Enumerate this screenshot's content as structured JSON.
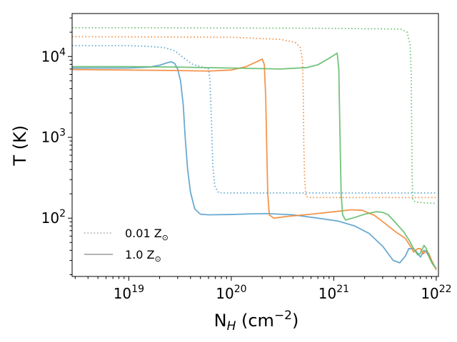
{
  "chart_data": {
    "type": "line",
    "xscale": "log",
    "yscale": "log",
    "xlim": [
      2.8e+18,
      1.05e+22
    ],
    "ylim": [
      19,
      34000
    ],
    "xlabel": {
      "main": "N",
      "sub": "H",
      "unit_open": " (cm",
      "unit_sup": "−2",
      "unit_close": ")"
    },
    "ylabel": "T (K)",
    "xticks": [
      {
        "value": 1e+19,
        "base": "10",
        "exp": "19"
      },
      {
        "value": 1e+20,
        "base": "10",
        "exp": "20"
      },
      {
        "value": 1e+21,
        "base": "10",
        "exp": "21"
      },
      {
        "value": 1e+22,
        "base": "10",
        "exp": "22"
      }
    ],
    "yticks": [
      {
        "value": 100,
        "base": "10",
        "exp": "2"
      },
      {
        "value": 1000,
        "base": "10",
        "exp": "3"
      },
      {
        "value": 10000,
        "base": "10",
        "exp": "4"
      }
    ],
    "legend": {
      "position": "lower-left",
      "entries": [
        {
          "label": "0.01 Z",
          "sub": "⊙",
          "style": "dotted",
          "color": "#aaaaaa"
        },
        {
          "label": "1.0 Z",
          "sub": "⊙",
          "style": "solid",
          "color": "#aaaaaa"
        }
      ]
    },
    "series": [
      {
        "name": "blue 0.01 Zsun",
        "color": "#5aa1cc",
        "style": "dotted",
        "points": [
          [
            2.8e+18,
            13600
          ],
          [
            1e+19,
            13600
          ],
          [
            1.6e+19,
            13300
          ],
          [
            2.2e+19,
            12900
          ],
          [
            2.8e+19,
            11800
          ],
          [
            3.4e+19,
            9700
          ],
          [
            4.2e+19,
            8000
          ],
          [
            5.2e+19,
            7400
          ],
          [
            6e+19,
            7000
          ],
          [
            6.2e+19,
            5000
          ],
          [
            6.4e+19,
            1600
          ],
          [
            6.6e+19,
            450
          ],
          [
            6.9e+19,
            250
          ],
          [
            7.5e+19,
            206
          ],
          [
            1e+20,
            205
          ],
          [
            1e+21,
            205
          ],
          [
            1e+22,
            205
          ]
        ]
      },
      {
        "name": "orange 0.01 Zsun",
        "color": "#f38a3a",
        "style": "dotted",
        "points": [
          [
            2.8e+18,
            17600
          ],
          [
            1e+19,
            17500
          ],
          [
            1e+20,
            17300
          ],
          [
            3e+20,
            16300
          ],
          [
            4.2e+20,
            15000
          ],
          [
            4.7e+20,
            13000
          ],
          [
            4.95e+20,
            9000
          ],
          [
            5.05e+20,
            3000
          ],
          [
            5.1e+20,
            800
          ],
          [
            5.2e+20,
            300
          ],
          [
            5.35e+20,
            185
          ],
          [
            5.8e+20,
            180
          ],
          [
            1e+21,
            180
          ],
          [
            1e+22,
            180
          ]
        ]
      },
      {
        "name": "green 0.01 Zsun",
        "color": "#63bd6c",
        "style": "dotted",
        "points": [
          [
            2.8e+18,
            22700
          ],
          [
            1e+19,
            22700
          ],
          [
            1e+20,
            22500
          ],
          [
            1e+21,
            22300
          ],
          [
            4.5e+21,
            21800
          ],
          [
            5.2e+21,
            20000
          ],
          [
            5.55e+21,
            14000
          ],
          [
            5.7e+21,
            6000
          ],
          [
            5.75e+21,
            1500
          ],
          [
            5.8e+21,
            400
          ],
          [
            5.9e+21,
            170
          ],
          [
            6.3e+21,
            158
          ],
          [
            8e+21,
            154
          ],
          [
            1e+22,
            152
          ]
        ]
      },
      {
        "name": "blue 1.0 Zsun",
        "color": "#5aa1cc",
        "style": "solid",
        "points": [
          [
            2.8e+18,
            7200
          ],
          [
            1e+19,
            7200
          ],
          [
            1.6e+19,
            7400
          ],
          [
            2e+19,
            7800
          ],
          [
            2.4e+19,
            8400
          ],
          [
            2.6e+19,
            8600
          ],
          [
            2.8e+19,
            8200
          ],
          [
            3e+19,
            7000
          ],
          [
            3.2e+19,
            5000
          ],
          [
            3.4e+19,
            2500
          ],
          [
            3.55e+19,
            1000
          ],
          [
            3.75e+19,
            400
          ],
          [
            4e+19,
            210
          ],
          [
            4.4e+19,
            130
          ],
          [
            5e+19,
            112
          ],
          [
            6e+19,
            110
          ],
          [
            1e+20,
            111
          ],
          [
            1.6e+20,
            113
          ],
          [
            2.2e+20,
            114
          ],
          [
            4e+20,
            110
          ],
          [
            7e+20,
            100
          ],
          [
            1.1e+21,
            92
          ],
          [
            1.6e+21,
            80
          ],
          [
            2.2e+21,
            65
          ],
          [
            3e+21,
            45
          ],
          [
            3.8e+21,
            30
          ],
          [
            4.4e+21,
            28
          ],
          [
            5e+21,
            34
          ],
          [
            5.4e+21,
            42
          ],
          [
            6e+21,
            42
          ],
          [
            6.7e+21,
            36
          ],
          [
            7e+21,
            33
          ],
          [
            7.6e+21,
            40
          ],
          [
            8e+21,
            38
          ],
          [
            9e+21,
            30
          ],
          [
            1e+22,
            23
          ]
        ]
      },
      {
        "name": "orange 1.0 Zsun",
        "color": "#f38a3a",
        "style": "solid",
        "points": [
          [
            2.8e+18,
            6900
          ],
          [
            1e+19,
            6800
          ],
          [
            3e+19,
            6700
          ],
          [
            6e+19,
            6600
          ],
          [
            1e+20,
            6800
          ],
          [
            1.4e+20,
            7500
          ],
          [
            1.8e+20,
            8700
          ],
          [
            2e+20,
            9300
          ],
          [
            2.1e+20,
            8000
          ],
          [
            2.17e+20,
            3000
          ],
          [
            2.22e+20,
            700
          ],
          [
            2.27e+20,
            200
          ],
          [
            2.35e+20,
            110
          ],
          [
            2.6e+20,
            100
          ],
          [
            3.5e+20,
            105
          ],
          [
            6e+20,
            112
          ],
          [
            1e+21,
            120
          ],
          [
            1.5e+21,
            127
          ],
          [
            1.9e+21,
            125
          ],
          [
            2.5e+21,
            108
          ],
          [
            3.2e+21,
            85
          ],
          [
            4e+21,
            68
          ],
          [
            5e+21,
            56
          ],
          [
            5.6e+21,
            45
          ],
          [
            6e+21,
            38
          ],
          [
            6.6e+21,
            42
          ],
          [
            7e+21,
            42
          ],
          [
            7.5e+21,
            36
          ],
          [
            8e+21,
            40
          ],
          [
            8.5e+21,
            36
          ],
          [
            9.2e+21,
            28
          ],
          [
            1e+22,
            23
          ]
        ]
      },
      {
        "name": "green 1.0 Zsun",
        "color": "#63bd6c",
        "style": "solid",
        "points": [
          [
            2.8e+18,
            7500
          ],
          [
            1e+19,
            7500
          ],
          [
            3e+19,
            7400
          ],
          [
            1e+20,
            7200
          ],
          [
            3e+20,
            7000
          ],
          [
            5.5e+20,
            7300
          ],
          [
            7e+20,
            7900
          ],
          [
            9e+20,
            9500
          ],
          [
            1.08e+21,
            11000
          ],
          [
            1.12e+21,
            7000
          ],
          [
            1.14e+21,
            2000
          ],
          [
            1.16e+21,
            600
          ],
          [
            1.18e+21,
            200
          ],
          [
            1.22e+21,
            110
          ],
          [
            1.3e+21,
            95
          ],
          [
            1.6e+21,
            102
          ],
          [
            2e+21,
            112
          ],
          [
            2.6e+21,
            120
          ],
          [
            3e+21,
            118
          ],
          [
            3.4e+21,
            110
          ],
          [
            4e+21,
            88
          ],
          [
            4.8e+21,
            68
          ],
          [
            5.5e+21,
            52
          ],
          [
            6e+21,
            42
          ],
          [
            6.6e+21,
            35
          ],
          [
            7e+21,
            37
          ],
          [
            7.6e+21,
            46
          ],
          [
            8e+21,
            42
          ],
          [
            8.6e+21,
            32
          ],
          [
            9.2e+21,
            27
          ],
          [
            1e+22,
            24
          ]
        ]
      }
    ]
  }
}
